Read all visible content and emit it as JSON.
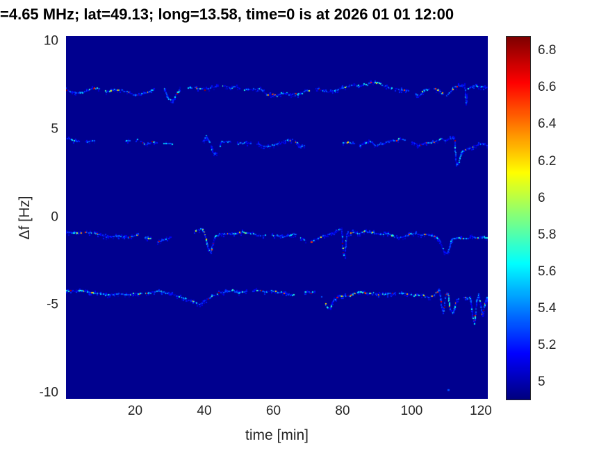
{
  "title": "=4.65 MHz;  lat=49.13; long=13.58, time=0 is at 2026 01 01 12:00",
  "chart_data": {
    "type": "heatmap",
    "title": "=4.65 MHz;  lat=49.13; long=13.58, time=0 is at 2026 01 01 12:00",
    "xlabel": "time [min]",
    "ylabel": "Δf [Hz]",
    "xlim": [
      0,
      122
    ],
    "ylim": [
      -10.3,
      10.3
    ],
    "grid": false,
    "background_color": "#00008f",
    "colormap": "jet",
    "x_ticks": [
      {
        "value": 20,
        "label": "20"
      },
      {
        "value": 40,
        "label": "40"
      },
      {
        "value": 60,
        "label": "60"
      },
      {
        "value": 80,
        "label": "80"
      },
      {
        "value": 100,
        "label": "100"
      },
      {
        "value": 120,
        "label": "120"
      }
    ],
    "y_ticks": [
      {
        "value": 10,
        "label": "10"
      },
      {
        "value": 5,
        "label": "5"
      },
      {
        "value": 0,
        "label": "0"
      },
      {
        "value": -5,
        "label": "-5"
      },
      {
        "value": -10,
        "label": "-10"
      }
    ],
    "colorbar": {
      "position": "right",
      "vmin": 4.91,
      "vmax": 6.88,
      "ticks": [
        {
          "value": 5,
          "label": "5"
        },
        {
          "value": 5.2,
          "label": "5.2"
        },
        {
          "value": 5.4,
          "label": "5.4"
        },
        {
          "value": 5.6,
          "label": "5.6"
        },
        {
          "value": 5.8,
          "label": "5.8"
        },
        {
          "value": 6,
          "label": "6"
        },
        {
          "value": 6.2,
          "label": "6.2"
        },
        {
          "value": 6.4,
          "label": "6.4"
        },
        {
          "value": 6.6,
          "label": "6.6"
        },
        {
          "value": 6.8,
          "label": "6.8"
        }
      ]
    },
    "traces": [
      {
        "name": "doppler-trace-+7Hz",
        "seed": 11,
        "bright_prob": 0.05,
        "mid_prob": 0.22,
        "gap_step_prob": 0.02,
        "gaps": [
          [
            25.8,
            28.2
          ]
        ],
        "points": [
          [
            0,
            7.25
          ],
          [
            4,
            7.1
          ],
          [
            8,
            7.3
          ],
          [
            12,
            7.15
          ],
          [
            16,
            7.3
          ],
          [
            20,
            7.1
          ],
          [
            24,
            7.2
          ],
          [
            25.5,
            7.3
          ],
          [
            28.5,
            7.35
          ],
          [
            29.5,
            6.85
          ],
          [
            31,
            6.7
          ],
          [
            33,
            7.3
          ],
          [
            36,
            7.45
          ],
          [
            40,
            7.3
          ],
          [
            44,
            7.5
          ],
          [
            48,
            7.45
          ],
          [
            52,
            7.3
          ],
          [
            56,
            7.4
          ],
          [
            58,
            7.0
          ],
          [
            61,
            6.9
          ],
          [
            64,
            7.15
          ],
          [
            68,
            7.1
          ],
          [
            72,
            7.25
          ],
          [
            76,
            7.1
          ],
          [
            80,
            7.3
          ],
          [
            84,
            7.45
          ],
          [
            88,
            7.6
          ],
          [
            91,
            7.55
          ],
          [
            94,
            7.3
          ],
          [
            97,
            7.2
          ],
          [
            100,
            7.25
          ],
          [
            102,
            6.95
          ],
          [
            104,
            7.3
          ],
          [
            106,
            7.4
          ],
          [
            108,
            7.3
          ],
          [
            110,
            6.9
          ],
          [
            112,
            7.3
          ],
          [
            114,
            7.45
          ],
          [
            115.4,
            7.5
          ],
          [
            115.8,
            6.4
          ],
          [
            116.2,
            7.3
          ],
          [
            118,
            7.5
          ],
          [
            120,
            7.45
          ],
          [
            122,
            7.4
          ]
        ]
      },
      {
        "name": "doppler-trace-+4Hz",
        "seed": 22,
        "bright_prob": 0.04,
        "mid_prob": 0.18,
        "gap_step_prob": 0.05,
        "gaps": [
          [
            8.5,
            17
          ],
          [
            31,
            39.5
          ],
          [
            70,
            79
          ]
        ],
        "points": [
          [
            0,
            4.45
          ],
          [
            3,
            4.35
          ],
          [
            6,
            4.3
          ],
          [
            8.5,
            4.4
          ],
          [
            17,
            4.25
          ],
          [
            19,
            4.15
          ],
          [
            21,
            4.3
          ],
          [
            23,
            4.15
          ],
          [
            25,
            4.35
          ],
          [
            27,
            4.2
          ],
          [
            29,
            4.25
          ],
          [
            31,
            4.2
          ],
          [
            39.5,
            4.3
          ],
          [
            40.5,
            4.6
          ],
          [
            41.5,
            4.3
          ],
          [
            42.5,
            3.6
          ],
          [
            43.5,
            3.5
          ],
          [
            45,
            4.3
          ],
          [
            48,
            4.35
          ],
          [
            51,
            4.25
          ],
          [
            54,
            4.2
          ],
          [
            57,
            4.05
          ],
          [
            60,
            4.1
          ],
          [
            63,
            4.35
          ],
          [
            66,
            4.45
          ],
          [
            68,
            3.95
          ],
          [
            70,
            4.1
          ],
          [
            74,
            4.15
          ],
          [
            79,
            4.2
          ],
          [
            82,
            4.25
          ],
          [
            85,
            4.1
          ],
          [
            88,
            4.3
          ],
          [
            90,
            3.95
          ],
          [
            93,
            4.2
          ],
          [
            96,
            4.3
          ],
          [
            99,
            4.25
          ],
          [
            102,
            4.0
          ],
          [
            104,
            4.2
          ],
          [
            107,
            4.3
          ],
          [
            110,
            4.35
          ],
          [
            112.4,
            4.5
          ],
          [
            112.9,
            3.0
          ],
          [
            113.4,
            2.9
          ],
          [
            114.5,
            3.7
          ],
          [
            116,
            3.85
          ],
          [
            118,
            3.9
          ],
          [
            120,
            4.0
          ],
          [
            122,
            3.95
          ]
        ]
      },
      {
        "name": "doppler-trace--1Hz",
        "seed": 33,
        "bright_prob": 0.06,
        "mid_prob": 0.2,
        "gap_step_prob": 0.02,
        "gaps": [
          [
            30.5,
            37.2
          ]
        ],
        "points": [
          [
            0,
            -0.85
          ],
          [
            3,
            -0.75
          ],
          [
            6,
            -0.7
          ],
          [
            9,
            -0.85
          ],
          [
            12,
            -1.0
          ],
          [
            15,
            -0.9
          ],
          [
            18,
            -1.05
          ],
          [
            21,
            -0.9
          ],
          [
            24,
            -1.1
          ],
          [
            26,
            -1.35
          ],
          [
            28,
            -1.2
          ],
          [
            30,
            -1.1
          ],
          [
            37.5,
            -0.8
          ],
          [
            39.5,
            -0.75
          ],
          [
            40.5,
            -1.2
          ],
          [
            41.2,
            -1.9
          ],
          [
            42,
            -2.0
          ],
          [
            43,
            -1.2
          ],
          [
            45,
            -0.95
          ],
          [
            48,
            -1.0
          ],
          [
            51,
            -0.85
          ],
          [
            54,
            -1.0
          ],
          [
            57,
            -1.1
          ],
          [
            60,
            -1.05
          ],
          [
            63,
            -1.15
          ],
          [
            66,
            -1.05
          ],
          [
            69,
            -1.3
          ],
          [
            71,
            -1.35
          ],
          [
            73,
            -1.15
          ],
          [
            75,
            -1.05
          ],
          [
            77,
            -0.95
          ],
          [
            79,
            -0.7
          ],
          [
            79.8,
            -0.65
          ],
          [
            80.2,
            -2.1
          ],
          [
            80.7,
            -2.2
          ],
          [
            81.3,
            -0.9
          ],
          [
            83,
            -0.85
          ],
          [
            85,
            -0.9
          ],
          [
            87,
            -0.75
          ],
          [
            89,
            -0.8
          ],
          [
            91,
            -0.9
          ],
          [
            93,
            -0.85
          ],
          [
            95,
            -1.0
          ],
          [
            98,
            -1.05
          ],
          [
            101,
            -0.95
          ],
          [
            104,
            -1.0
          ],
          [
            106,
            -1.1
          ],
          [
            108,
            -1.35
          ],
          [
            109.5,
            -2.0
          ],
          [
            110.5,
            -2.1
          ],
          [
            111.5,
            -1.3
          ],
          [
            113,
            -1.15
          ],
          [
            115,
            -1.2
          ],
          [
            117,
            -1.1
          ],
          [
            119,
            -1.15
          ],
          [
            121,
            -1.1
          ],
          [
            122,
            -1.15
          ]
        ]
      },
      {
        "name": "doppler-trace--4Hz",
        "seed": 44,
        "bright_prob": 0.08,
        "mid_prob": 0.3,
        "gap_step_prob": 0.012,
        "gaps": [],
        "points": [
          [
            0,
            -4.2
          ],
          [
            3,
            -4.25
          ],
          [
            6,
            -4.15
          ],
          [
            9,
            -4.2
          ],
          [
            12,
            -4.35
          ],
          [
            15,
            -4.3
          ],
          [
            18,
            -4.25
          ],
          [
            21,
            -4.2
          ],
          [
            24,
            -4.15
          ],
          [
            27,
            -4.1
          ],
          [
            30,
            -4.3
          ],
          [
            33,
            -4.45
          ],
          [
            36,
            -4.75
          ],
          [
            38,
            -4.95
          ],
          [
            39,
            -5.0
          ],
          [
            40,
            -4.85
          ],
          [
            42,
            -4.55
          ],
          [
            44,
            -4.4
          ],
          [
            46,
            -4.35
          ],
          [
            48,
            -4.3
          ],
          [
            50,
            -4.4
          ],
          [
            52,
            -4.35
          ],
          [
            55,
            -4.3
          ],
          [
            58,
            -4.25
          ],
          [
            61,
            -4.3
          ],
          [
            64,
            -4.4
          ],
          [
            66,
            -4.5
          ],
          [
            68,
            -4.35
          ],
          [
            70,
            -4.3
          ],
          [
            72,
            -4.35
          ],
          [
            74,
            -4.5
          ],
          [
            75.5,
            -5.05
          ],
          [
            76.5,
            -5.15
          ],
          [
            77.5,
            -4.7
          ],
          [
            79,
            -4.5
          ],
          [
            81,
            -4.45
          ],
          [
            83,
            -4.4
          ],
          [
            85,
            -4.35
          ],
          [
            87,
            -4.45
          ],
          [
            89,
            -4.4
          ],
          [
            91,
            -4.5
          ],
          [
            93,
            -4.45
          ],
          [
            95,
            -4.4
          ],
          [
            97,
            -4.35
          ],
          [
            99,
            -4.45
          ],
          [
            101,
            -4.4
          ],
          [
            103,
            -4.35
          ],
          [
            105,
            -4.4
          ],
          [
            107,
            -4.2
          ],
          [
            108,
            -3.95
          ],
          [
            108.6,
            -4.9
          ],
          [
            109.2,
            -5.35
          ],
          [
            109.8,
            -4.4
          ],
          [
            110.5,
            -4.1
          ],
          [
            111.2,
            -5.2
          ],
          [
            112,
            -5.3
          ],
          [
            113,
            -4.6
          ],
          [
            114,
            -4.45
          ],
          [
            115,
            -4.5
          ],
          [
            116,
            -4.55
          ],
          [
            117,
            -4.5
          ],
          [
            117.6,
            -5.4
          ],
          [
            118.2,
            -5.9
          ],
          [
            118.8,
            -4.8
          ],
          [
            119.4,
            -4.4
          ],
          [
            120,
            -5.0
          ],
          [
            120.6,
            -5.6
          ],
          [
            121.2,
            -4.9
          ],
          [
            121.8,
            -4.5
          ],
          [
            122,
            -4.8
          ]
        ]
      }
    ],
    "dots": [
      {
        "t": 110.5,
        "df": -9.78,
        "value": 5.3
      }
    ]
  }
}
